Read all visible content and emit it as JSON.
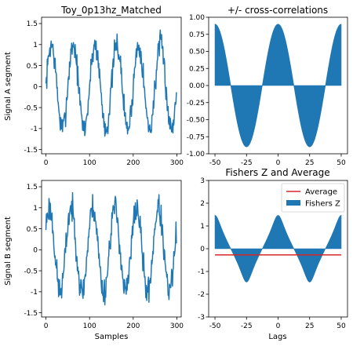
{
  "chart_data": [
    {
      "type": "line",
      "title": "Toy_0p13hz_Matched",
      "xlabel": "",
      "ylabel": "Signal A segment",
      "xlim": [
        -10,
        310
      ],
      "ylim": [
        -1.6,
        1.65
      ],
      "xticks": [
        0,
        100,
        200,
        300
      ],
      "yticks": [
        -1.5,
        -1.0,
        -0.5,
        0.0,
        0.5,
        1.0,
        1.5
      ],
      "signal": {
        "points": 300,
        "amplitude": 1.0,
        "period": 50,
        "noise": 0.18,
        "phase_deg": 0,
        "seed": 7
      },
      "color": "#1f77b4"
    },
    {
      "type": "area",
      "title": "+/- cross-correlations",
      "xlabel": "",
      "ylabel": "",
      "xlim": [
        -55,
        55
      ],
      "ylim": [
        -1.0,
        1.0
      ],
      "xticks": [
        -50,
        -25,
        0,
        25,
        50
      ],
      "yticks": [
        -1.0,
        -0.75,
        -0.5,
        -0.25,
        0.0,
        0.25,
        0.5,
        0.75,
        1.0
      ],
      "lags": [
        -50,
        50
      ],
      "peak": 0.9,
      "period": 50,
      "color": "#1f77b4"
    },
    {
      "type": "line",
      "title": "",
      "xlabel": "Samples",
      "ylabel": "Signal B segment",
      "xlim": [
        -10,
        310
      ],
      "ylim": [
        -1.6,
        1.65
      ],
      "xticks": [
        0,
        100,
        200,
        300
      ],
      "yticks": [
        -1.5,
        -1.0,
        -0.5,
        0.0,
        0.5,
        1.0,
        1.5
      ],
      "signal": {
        "points": 300,
        "amplitude": 1.0,
        "period": 50,
        "noise": 0.2,
        "phase_deg": 35,
        "seed": 23
      },
      "color": "#1f77b4"
    },
    {
      "type": "area",
      "title": "Fishers Z and Average",
      "xlabel": "Lags",
      "ylabel": "",
      "xlim": [
        -55,
        55
      ],
      "ylim": [
        -3,
        3
      ],
      "xticks": [
        -50,
        -25,
        0,
        25,
        50
      ],
      "yticks": [
        -3,
        -2,
        -1,
        0,
        1,
        2,
        3
      ],
      "lags": [
        -50,
        50
      ],
      "peak": 0.9,
      "period": 50,
      "average": -0.27,
      "legend_position": "upper-right",
      "series": [
        {
          "name": "Average",
          "color": "#d62728"
        },
        {
          "name": "Fishers Z",
          "color": "#1f77b4"
        }
      ]
    }
  ]
}
